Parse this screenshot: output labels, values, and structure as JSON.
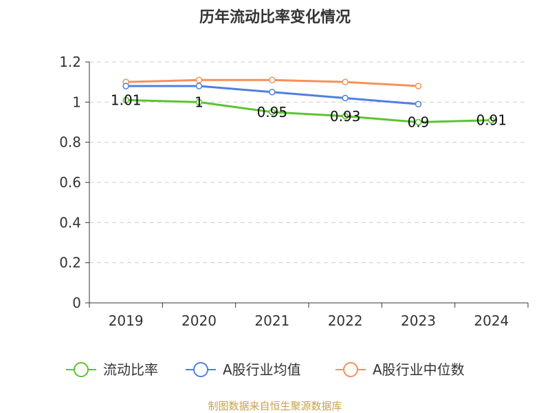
{
  "chart_data": {
    "type": "line",
    "title": "历年流动比率变化情况",
    "categories": [
      "2019",
      "2020",
      "2021",
      "2022",
      "2023",
      "2024"
    ],
    "ylim": [
      0,
      1.2
    ],
    "yticks": [
      "0",
      "0.2",
      "0.4",
      "0.6",
      "0.8",
      "1",
      "1.2"
    ],
    "grid": true,
    "legend_position": "bottom",
    "series": [
      {
        "name": "流动比率",
        "color": "#5bc42d",
        "values": [
          1.01,
          1.0,
          0.95,
          0.93,
          0.9,
          0.91
        ],
        "labels": [
          "1.01",
          "1",
          "0.95",
          "0.93",
          "0.9",
          "0.91"
        ]
      },
      {
        "name": "A股行业均值",
        "color": "#4f7fe0",
        "values": [
          1.08,
          1.08,
          1.05,
          1.02,
          0.99,
          null
        ]
      },
      {
        "name": "A股行业中位数",
        "color": "#f5905a",
        "values": [
          1.1,
          1.11,
          1.11,
          1.1,
          1.08,
          null
        ]
      }
    ],
    "source": "制图数据来自恒生聚源数据库"
  }
}
